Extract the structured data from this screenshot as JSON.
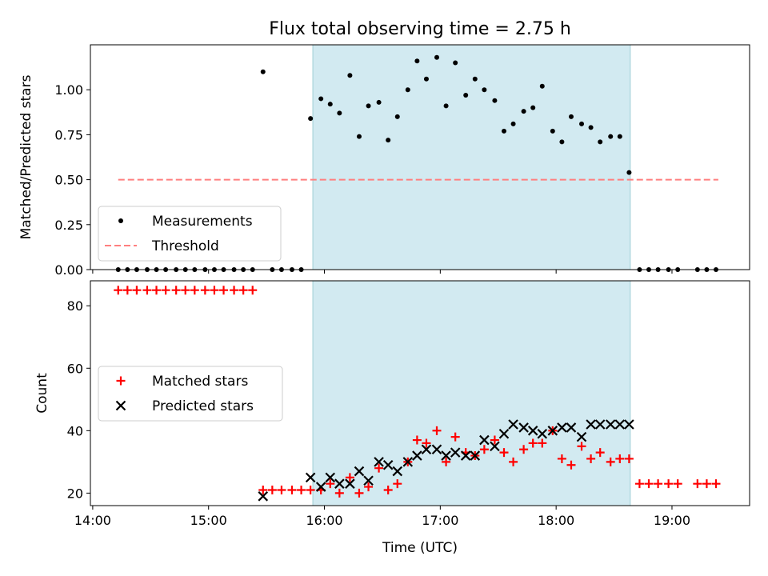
{
  "chart_data": {
    "type": "scatter",
    "title": "Flux total observing time = 2.75 h",
    "xlabel": "Time (UTC)",
    "x_unit": "hours UTC",
    "x_ticks": [
      {
        "value": 14,
        "label": "14:00"
      },
      {
        "value": 15,
        "label": "15:00"
      },
      {
        "value": 16,
        "label": "16:00"
      },
      {
        "value": 17,
        "label": "17:00"
      },
      {
        "value": 18,
        "label": "18:00"
      },
      {
        "value": 19,
        "label": "19:00"
      }
    ],
    "xlim": [
      13.98,
      19.67
    ],
    "shaded_region": {
      "x_start": 15.9,
      "x_end": 18.64,
      "color": "#add8e6"
    },
    "panels": [
      {
        "ylabel": "Matched/Predicted stars",
        "ylim": [
          0,
          1.25
        ],
        "y_ticks": [
          {
            "value": 0,
            "label": "0.00"
          },
          {
            "value": 0.25,
            "label": "0.25"
          },
          {
            "value": 0.5,
            "label": "0.50"
          },
          {
            "value": 0.75,
            "label": "0.75"
          },
          {
            "value": 1.0,
            "label": "1.00"
          }
        ],
        "legend": {
          "position": "lower-left",
          "entries": [
            "Measurements",
            "Threshold"
          ]
        },
        "series": [
          {
            "name": "Measurements",
            "marker": "dot",
            "color": "#000000",
            "x": [
              14.22,
              14.3,
              14.38,
              14.47,
              14.55,
              14.63,
              14.72,
              14.8,
              14.88,
              14.97,
              15.05,
              15.13,
              15.22,
              15.3,
              15.38,
              15.47,
              15.55,
              15.63,
              15.72,
              15.8,
              15.88,
              15.97,
              16.05,
              16.13,
              16.22,
              16.3,
              16.38,
              16.47,
              16.55,
              16.63,
              16.72,
              16.8,
              16.88,
              16.97,
              17.05,
              17.13,
              17.22,
              17.3,
              17.38,
              17.47,
              17.55,
              17.63,
              17.72,
              17.8,
              17.88,
              17.97,
              18.05,
              18.13,
              18.22,
              18.3,
              18.38,
              18.47,
              18.55,
              18.63,
              18.72,
              18.8,
              18.88,
              18.97,
              19.05,
              19.13,
              19.22,
              19.3,
              19.38
            ],
            "y": [
              0,
              0,
              0,
              0,
              0,
              0,
              0,
              0,
              0,
              0,
              0,
              0,
              0,
              0,
              0,
              1.1,
              0,
              0,
              0,
              0,
              0.84,
              0.95,
              0.92,
              0.87,
              1.08,
              0.74,
              0.91,
              0.93,
              0.72,
              0.85,
              1.0,
              1.16,
              1.06,
              1.18,
              0.91,
              1.15,
              0.97,
              1.06,
              1.0,
              0.94,
              0.77,
              0.81,
              0.88,
              0.9,
              1.02,
              0.77,
              0.71,
              0.85,
              0.81,
              0.79,
              0.71,
              0.74,
              0.74,
              0.54,
              0,
              0,
              0,
              0,
              0,
              null,
              0,
              0,
              0
            ]
          },
          {
            "name": "Threshold",
            "marker": "dashed-line",
            "color": "#ff7f7f",
            "x": [
              14.22,
              19.4
            ],
            "y": [
              0.5,
              0.5
            ]
          }
        ]
      },
      {
        "ylabel": "Count",
        "ylim": [
          16,
          88
        ],
        "y_ticks": [
          {
            "value": 20,
            "label": "20"
          },
          {
            "value": 40,
            "label": "40"
          },
          {
            "value": 60,
            "label": "60"
          },
          {
            "value": 80,
            "label": "80"
          }
        ],
        "legend": {
          "position": "center-left",
          "entries": [
            "Matched stars",
            "Predicted stars"
          ]
        },
        "series": [
          {
            "name": "Matched stars",
            "marker": "plus",
            "color": "#ff0000",
            "x": [
              14.22,
              14.3,
              14.38,
              14.47,
              14.55,
              14.63,
              14.72,
              14.8,
              14.88,
              14.97,
              15.05,
              15.13,
              15.22,
              15.3,
              15.38,
              15.47,
              15.55,
              15.63,
              15.72,
              15.8,
              15.88,
              15.97,
              16.05,
              16.13,
              16.22,
              16.3,
              16.38,
              16.47,
              16.55,
              16.63,
              16.72,
              16.8,
              16.88,
              16.97,
              17.05,
              17.13,
              17.22,
              17.3,
              17.38,
              17.47,
              17.55,
              17.63,
              17.72,
              17.8,
              17.88,
              17.97,
              18.05,
              18.13,
              18.22,
              18.3,
              18.38,
              18.47,
              18.55,
              18.63,
              18.72,
              18.8,
              18.88,
              18.97,
              19.05,
              19.22,
              19.3,
              19.38
            ],
            "y": [
              85,
              85,
              85,
              85,
              85,
              85,
              85,
              85,
              85,
              85,
              85,
              85,
              85,
              85,
              85,
              21,
              21,
              21,
              21,
              21,
              21,
              21,
              23,
              20,
              25,
              20,
              22,
              28,
              21,
              23,
              30,
              37,
              36,
              40,
              30,
              38,
              33,
              32,
              34,
              37,
              33,
              30,
              34,
              36,
              36,
              40,
              31,
              29,
              35,
              31,
              33,
              30,
              31,
              31,
              23,
              23,
              23,
              23,
              23,
              23,
              23,
              23
            ]
          },
          {
            "name": "Predicted stars",
            "marker": "x",
            "color": "#000000",
            "x": [
              15.47,
              15.88,
              15.97,
              16.05,
              16.13,
              16.22,
              16.3,
              16.38,
              16.47,
              16.55,
              16.63,
              16.72,
              16.8,
              16.88,
              16.97,
              17.05,
              17.13,
              17.22,
              17.3,
              17.38,
              17.47,
              17.55,
              17.63,
              17.72,
              17.8,
              17.88,
              17.97,
              18.05,
              18.13,
              18.22,
              18.3,
              18.38,
              18.47,
              18.55,
              18.63
            ],
            "y": [
              19,
              25,
              22,
              25,
              23,
              23,
              27,
              24,
              30,
              29,
              27,
              30,
              32,
              34,
              34,
              32,
              33,
              32,
              32,
              37,
              35,
              39,
              42,
              41,
              40,
              39,
              40,
              41,
              41,
              38,
              42,
              42,
              42,
              42,
              42
            ]
          }
        ]
      }
    ]
  }
}
